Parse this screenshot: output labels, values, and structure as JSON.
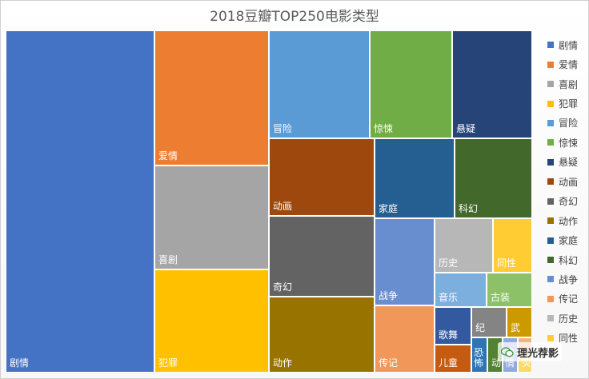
{
  "chart_data": {
    "type": "treemap",
    "title": "2018豆瓣TOP250电影类型",
    "legend_position": "right",
    "categories": [
      {
        "name": "剧情",
        "color": "#4472C4",
        "value": 194
      },
      {
        "name": "爱情",
        "color": "#ED7D31",
        "value": 51
      },
      {
        "name": "喜剧",
        "color": "#A5A5A5",
        "value": 40
      },
      {
        "name": "犯罪",
        "color": "#FFC000",
        "value": 40
      },
      {
        "name": "冒险",
        "color": "#5B9BD5",
        "value": 34
      },
      {
        "name": "惊悚",
        "color": "#70AD47",
        "value": 26
      },
      {
        "name": "悬疑",
        "color": "#264478",
        "value": 26
      },
      {
        "name": "动画",
        "color": "#9E480E",
        "value": 25
      },
      {
        "name": "奇幻",
        "color": "#636363",
        "value": 25
      },
      {
        "name": "动作",
        "color": "#997300",
        "value": 24
      },
      {
        "name": "家庭",
        "color": "#255E91",
        "value": 23
      },
      {
        "name": "科幻",
        "color": "#43682B",
        "value": 23
      },
      {
        "name": "战争",
        "color": "#698ED0",
        "value": 17
      },
      {
        "name": "传记",
        "color": "#F1975A",
        "value": 13
      },
      {
        "name": "历史",
        "color": "#B7B7B7",
        "value": 11
      },
      {
        "name": "同性",
        "color": "#FFCD33",
        "value": 10
      },
      {
        "name": "音乐",
        "color": "#7CAFDD",
        "value": 7
      },
      {
        "name": "古装",
        "color": "#8CC168",
        "value": 7
      },
      {
        "name": "歌舞",
        "color": "#335AA1",
        "value": 5
      },
      {
        "name": "纪",
        "color": "#848484",
        "value": 4
      },
      {
        "name": "武",
        "color": "#CC9A00",
        "value": 3
      },
      {
        "name": "儿童",
        "color": "#C55A11",
        "value": 4
      },
      {
        "name": "恐怖",
        "color": "#2E75B6",
        "value": 2
      },
      {
        "name": "动",
        "color": "#548235",
        "value": 1.2
      },
      {
        "name": "中情",
        "color": "#8FAADC",
        "value": 1.2
      },
      {
        "name": "",
        "color": "#F4B183",
        "value": 1
      },
      {
        "name": "灾",
        "color": "#FFD966",
        "value": 0.5
      }
    ],
    "legend_shown": [
      "剧情",
      "爱情",
      "喜剧",
      "犯罪",
      "冒险",
      "惊悚",
      "悬疑",
      "动画",
      "奇幻",
      "动作",
      "家庭",
      "科幻",
      "战争",
      "传记",
      "历史",
      "同性"
    ]
  },
  "watermark": {
    "text": "理光荐影",
    "icon": "wechat-icon"
  }
}
